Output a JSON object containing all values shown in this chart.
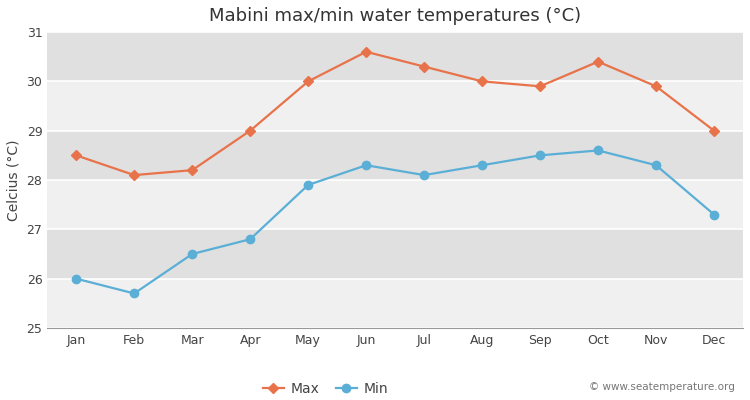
{
  "months": [
    "Jan",
    "Feb",
    "Mar",
    "Apr",
    "May",
    "Jun",
    "Jul",
    "Aug",
    "Sep",
    "Oct",
    "Nov",
    "Dec"
  ],
  "max_temps": [
    28.5,
    28.1,
    28.2,
    29.0,
    30.0,
    30.6,
    30.3,
    30.0,
    29.9,
    30.4,
    29.9,
    29.0
  ],
  "min_temps": [
    26.0,
    25.7,
    26.5,
    26.8,
    27.9,
    28.3,
    28.1,
    28.3,
    28.5,
    28.6,
    28.3,
    27.3
  ],
  "max_color": "#e8734a",
  "min_color": "#5bafd6",
  "title": "Mabini max/min water temperatures (°C)",
  "ylabel": "Celcius (°C)",
  "ylim": [
    25,
    31
  ],
  "yticks": [
    25,
    26,
    27,
    28,
    29,
    30,
    31
  ],
  "bg_color": "#ffffff",
  "plot_bg_color_light": "#f0f0f0",
  "plot_bg_color_dark": "#e0e0e0",
  "grid_color": "#ffffff",
  "watermark": "© www.seatemperature.org",
  "title_fontsize": 13,
  "label_fontsize": 10,
  "tick_fontsize": 9,
  "watermark_fontsize": 7.5
}
